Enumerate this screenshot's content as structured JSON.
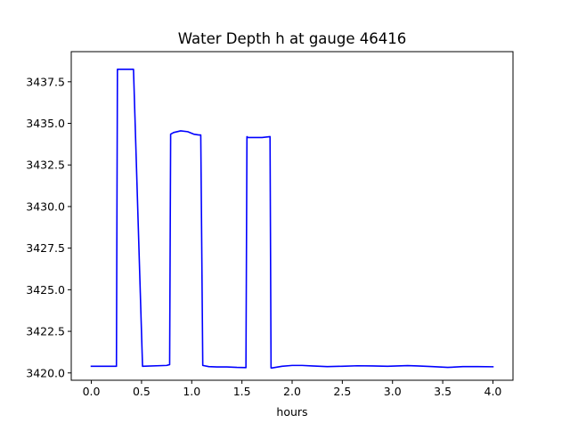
{
  "chart_data": {
    "type": "line",
    "title": "Water Depth h at gauge 46416",
    "xlabel": "hours",
    "ylabel": "",
    "xlim": [
      -0.2,
      4.2
    ],
    "ylim": [
      3419.56,
      3439.31
    ],
    "xticks": [
      0.0,
      0.5,
      1.0,
      1.5,
      2.0,
      2.5,
      3.0,
      3.5,
      4.0
    ],
    "xtick_labels": [
      "0.0",
      "0.5",
      "1.0",
      "1.5",
      "2.0",
      "2.5",
      "3.0",
      "3.5",
      "4.0"
    ],
    "yticks": [
      3420.0,
      3422.5,
      3425.0,
      3427.5,
      3430.0,
      3432.5,
      3435.0,
      3437.5
    ],
    "ytick_labels": [
      "3420.0",
      "3422.5",
      "3425.0",
      "3427.5",
      "3430.0",
      "3432.5",
      "3435.0",
      "3437.5"
    ],
    "grid": false,
    "series": [
      {
        "color": "#0000ff",
        "x": [
          0.0,
          0.25,
          0.26,
          0.42,
          0.51,
          0.75,
          0.78,
          0.79,
          0.82,
          0.89,
          0.96,
          1.02,
          1.07,
          1.09,
          1.11,
          1.17,
          1.25,
          1.35,
          1.45,
          1.54,
          1.55,
          1.56,
          1.62,
          1.7,
          1.78,
          1.79,
          1.8,
          1.9,
          2.0,
          2.1,
          2.2,
          2.35,
          2.5,
          2.65,
          2.8,
          2.95,
          3.05,
          3.15,
          3.25,
          3.4,
          3.55,
          3.7,
          3.85,
          4.0
        ],
        "y": [
          3420.4,
          3420.4,
          3438.25,
          3438.25,
          3420.4,
          3420.45,
          3420.5,
          3434.35,
          3434.45,
          3434.55,
          3434.5,
          3434.35,
          3434.3,
          3434.3,
          3420.45,
          3420.38,
          3420.36,
          3420.36,
          3420.33,
          3420.32,
          3434.2,
          3434.15,
          3434.15,
          3434.15,
          3434.2,
          3420.3,
          3420.3,
          3420.4,
          3420.45,
          3420.45,
          3420.42,
          3420.38,
          3420.4,
          3420.43,
          3420.42,
          3420.4,
          3420.42,
          3420.44,
          3420.42,
          3420.38,
          3420.33,
          3420.38,
          3420.38,
          3420.37
        ]
      }
    ]
  }
}
